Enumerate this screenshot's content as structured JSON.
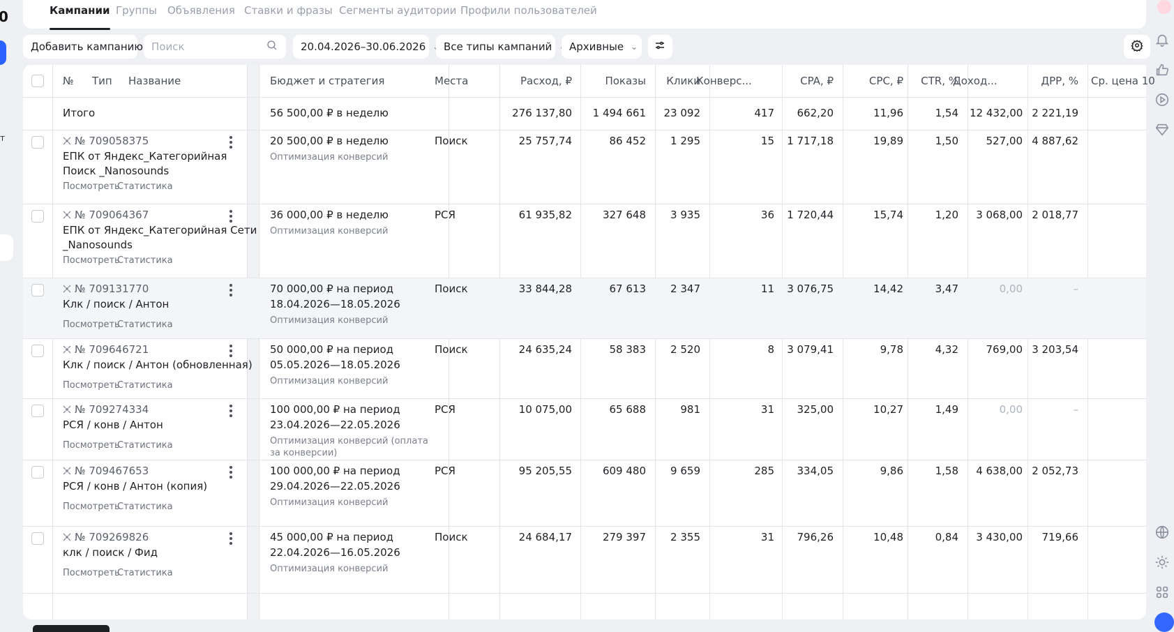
{
  "tabs": [
    {
      "label": "Кампании",
      "active": true
    },
    {
      "label": "Группы",
      "active": false
    },
    {
      "label": "Объявления",
      "active": false
    },
    {
      "label": "Ставки и фразы",
      "active": false
    },
    {
      "label": "Сегменты аудитории",
      "active": false
    },
    {
      "label": "Профили пользователей",
      "active": false
    }
  ],
  "toolbar": {
    "add_campaign": "Добавить кампанию",
    "search_placeholder": "Поиск",
    "date_range": "20.04.2026–30.06.2026",
    "campaign_types": "Все типы кампаний",
    "archive_filter": "Архивные"
  },
  "left_edge": {
    "digit": "0",
    "letter": "т"
  },
  "columns": {
    "number": "№",
    "type": "Тип",
    "name": "Название",
    "budget": "Бюджет и стратегия",
    "places": "Места",
    "spend": "Расход, ₽",
    "impressions": "Показы",
    "clicks": "Клики",
    "conversions": "Конверс...",
    "cpa": "CPA, ₽",
    "cpc": "CPC, ₽",
    "ctr": "CTR, %",
    "income": "Доход...",
    "drr": "ДРР, %",
    "avg_price": "Ср. цена 10"
  },
  "totals": {
    "label": "Итого",
    "budget": "56 500,00 ₽ в неделю",
    "spend": "276 137,80",
    "impressions": "1 494 661",
    "clicks": "23 092",
    "conversions": "417",
    "cpa": "662,20",
    "cpc": "11,96",
    "ctr": "1,54",
    "income": "12 432,00",
    "drr": "2 221,19"
  },
  "row_links": {
    "view": "Посмотреть",
    "stats": "Статистика"
  },
  "rows": [
    {
      "id": "№ 709058375",
      "name1": "ЕПК от Яндекс_Категорийная",
      "name2": "Поиск _Nanosounds",
      "budget1": "20 500,00 ₽ в неделю",
      "budget2": "",
      "strategy1": "Оптимизация конверсий",
      "strategy2": "",
      "places": "Поиск",
      "spend": "25 757,74",
      "impressions": "86 452",
      "clicks": "1 295",
      "conversions": "15",
      "cpa": "1 717,18",
      "cpc": "19,89",
      "ctr": "1,50",
      "income": "527,00",
      "drr": "4 887,62"
    },
    {
      "id": "№ 709064367",
      "name1": "ЕПК от Яндекс_Категорийная Сети",
      "name2": "_Nanosounds",
      "budget1": "36 000,00 ₽ в неделю",
      "budget2": "",
      "strategy1": "Оптимизация конверсий",
      "strategy2": "",
      "places": "РСЯ",
      "spend": "61 935,82",
      "impressions": "327 648",
      "clicks": "3 935",
      "conversions": "36",
      "cpa": "1 720,44",
      "cpc": "15,74",
      "ctr": "1,20",
      "income": "3 068,00",
      "drr": "2 018,77"
    },
    {
      "id": "№ 709131770",
      "name1": "Клк / поиск / Антон",
      "name2": "",
      "budget1": "70 000,00 ₽ на период",
      "budget2": "18.04.2026—18.05.2026",
      "strategy1": "Оптимизация конверсий",
      "strategy2": "",
      "places": "Поиск",
      "spend": "33 844,28",
      "impressions": "67 613",
      "clicks": "2 347",
      "conversions": "11",
      "cpa": "3 076,75",
      "cpc": "14,42",
      "ctr": "3,47",
      "income": "0,00",
      "drr": "–"
    },
    {
      "id": "№ 709646721",
      "name1": "Клк / поиск / Антон (обновленная)",
      "name2": "",
      "budget1": "50 000,00 ₽ на период",
      "budget2": "05.05.2026—18.05.2026",
      "strategy1": "Оптимизация конверсий",
      "strategy2": "",
      "places": "Поиск",
      "spend": "24 635,24",
      "impressions": "58 383",
      "clicks": "2 520",
      "conversions": "8",
      "cpa": "3 079,41",
      "cpc": "9,78",
      "ctr": "4,32",
      "income": "769,00",
      "drr": "3 203,54"
    },
    {
      "id": "№ 709274334",
      "name1": "РСЯ / конв / Антон",
      "name2": "",
      "budget1": "100 000,00 ₽ на период",
      "budget2": "23.04.2026—22.05.2026",
      "strategy1": "Оптимизация конверсий (оплата",
      "strategy2": "за конверсии)",
      "places": "РСЯ",
      "spend": "10 075,00",
      "impressions": "65 688",
      "clicks": "981",
      "conversions": "31",
      "cpa": "325,00",
      "cpc": "10,27",
      "ctr": "1,49",
      "income": "0,00",
      "drr": "–"
    },
    {
      "id": "№ 709467653",
      "name1": "РСЯ / конв / Антон (копия)",
      "name2": "",
      "budget1": "100 000,00 ₽ на период",
      "budget2": "29.04.2026—22.05.2026",
      "strategy1": "Оптимизация конверсий",
      "strategy2": "",
      "places": "РСЯ",
      "spend": "95 205,55",
      "impressions": "609 480",
      "clicks": "9 659",
      "conversions": "285",
      "cpa": "334,05",
      "cpc": "9,86",
      "ctr": "1,58",
      "income": "4 638,00",
      "drr": "2 052,73"
    },
    {
      "id": "№ 709269826",
      "name1": "клк / поиск / Фид",
      "name2": "",
      "budget1": "45 000,00 ₽ на период",
      "budget2": "22.04.2026—16.05.2026",
      "strategy1": "Оптимизация конверсий",
      "strategy2": "",
      "places": "Поиск",
      "spend": "24 684,17",
      "impressions": "279 397",
      "clicks": "2 355",
      "conversions": "31",
      "cpa": "796,26",
      "cpc": "10,48",
      "ctr": "0,84",
      "income": "3 430,00",
      "drr": "719,66"
    }
  ],
  "colors": {
    "accent": "#2a62ff",
    "text": "#1f2024",
    "muted": "#aeb3bc",
    "background": "#eef0f3"
  }
}
